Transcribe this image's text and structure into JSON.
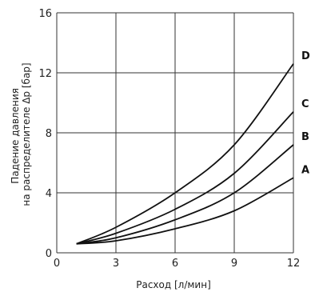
{
  "chart_data": {
    "type": "line",
    "xlabel": "Расход [л/мин]",
    "ylabel": [
      "Падение давления",
      "на распределителе Δp [бар]"
    ],
    "xlim": [
      0,
      12
    ],
    "ylim": [
      0,
      16
    ],
    "x_ticks": [
      0,
      3,
      6,
      9,
      12
    ],
    "y_ticks": [
      0,
      4,
      8,
      12,
      16
    ],
    "grid": true,
    "series": [
      {
        "name": "A",
        "x": [
          1,
          3,
          6,
          9,
          12
        ],
        "y": [
          0.6,
          0.8,
          1.6,
          2.8,
          5.0
        ]
      },
      {
        "name": "B",
        "x": [
          1,
          3,
          6,
          9,
          12
        ],
        "y": [
          0.6,
          1.0,
          2.2,
          4.0,
          7.2
        ]
      },
      {
        "name": "C",
        "x": [
          1,
          3,
          6,
          9,
          12
        ],
        "y": [
          0.6,
          1.3,
          2.9,
          5.3,
          9.4
        ]
      },
      {
        "name": "D",
        "x": [
          1,
          3,
          6,
          9,
          12
        ],
        "y": [
          0.6,
          1.7,
          4.0,
          7.2,
          12.6
        ]
      }
    ]
  }
}
